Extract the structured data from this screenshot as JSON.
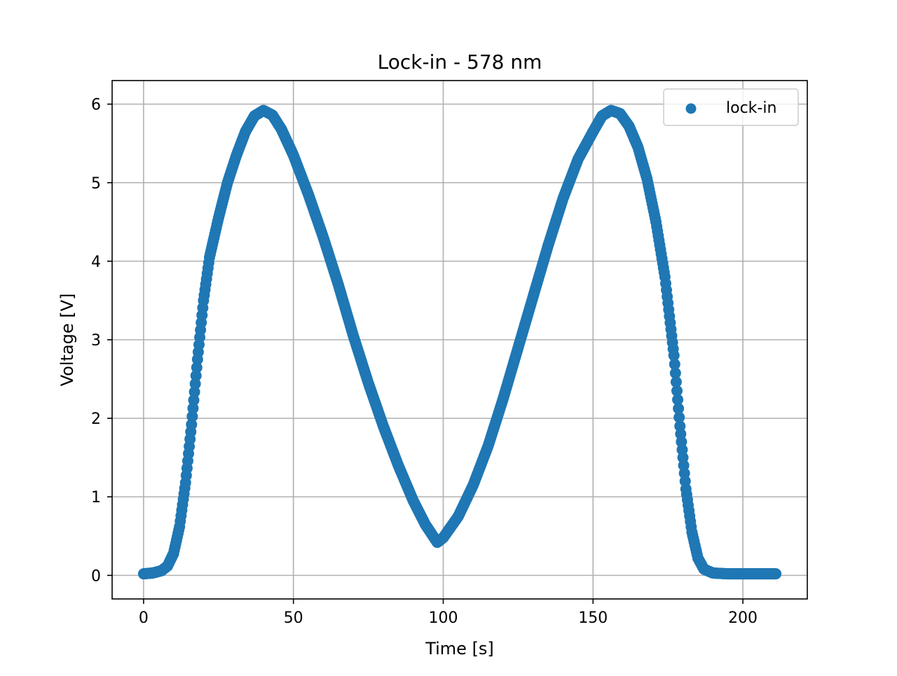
{
  "chart_data": {
    "type": "scatter",
    "title": "Lock-in - 578 nm",
    "xlabel": "Time [s]",
    "ylabel": "Voltage [V]",
    "xlim": [
      -10.5,
      221.5
    ],
    "ylim": [
      -0.3,
      6.3
    ],
    "xticks": [
      0,
      50,
      100,
      150,
      200
    ],
    "yticks": [
      0,
      1,
      2,
      3,
      4,
      5,
      6
    ],
    "grid": true,
    "legend_placement": "upper right",
    "series": [
      {
        "name": "lock-in",
        "color": "#1f77b4",
        "marker": "circle",
        "points": [
          [
            0,
            0.02
          ],
          [
            3,
            0.03
          ],
          [
            6,
            0.06
          ],
          [
            8,
            0.12
          ],
          [
            10,
            0.28
          ],
          [
            12,
            0.62
          ],
          [
            14,
            1.18
          ],
          [
            16,
            1.92
          ],
          [
            18,
            2.75
          ],
          [
            20,
            3.5
          ],
          [
            22,
            4.05
          ],
          [
            25,
            4.55
          ],
          [
            28,
            5.0
          ],
          [
            31,
            5.35
          ],
          [
            34,
            5.65
          ],
          [
            37,
            5.85
          ],
          [
            40,
            5.92
          ],
          [
            43,
            5.86
          ],
          [
            46,
            5.68
          ],
          [
            50,
            5.35
          ],
          [
            55,
            4.85
          ],
          [
            60,
            4.3
          ],
          [
            65,
            3.7
          ],
          [
            70,
            3.05
          ],
          [
            75,
            2.45
          ],
          [
            80,
            1.9
          ],
          [
            85,
            1.4
          ],
          [
            90,
            0.95
          ],
          [
            94,
            0.65
          ],
          [
            98,
            0.42
          ],
          [
            100,
            0.48
          ],
          [
            105,
            0.75
          ],
          [
            110,
            1.15
          ],
          [
            115,
            1.65
          ],
          [
            120,
            2.25
          ],
          [
            125,
            2.9
          ],
          [
            130,
            3.55
          ],
          [
            135,
            4.2
          ],
          [
            140,
            4.8
          ],
          [
            145,
            5.3
          ],
          [
            150,
            5.65
          ],
          [
            153,
            5.85
          ],
          [
            156,
            5.92
          ],
          [
            159,
            5.88
          ],
          [
            162,
            5.72
          ],
          [
            165,
            5.45
          ],
          [
            168,
            5.05
          ],
          [
            171,
            4.5
          ],
          [
            174,
            3.8
          ],
          [
            177,
            2.8
          ],
          [
            179,
            1.9
          ],
          [
            181,
            1.1
          ],
          [
            183,
            0.55
          ],
          [
            185,
            0.22
          ],
          [
            187,
            0.08
          ],
          [
            190,
            0.03
          ],
          [
            195,
            0.02
          ],
          [
            200,
            0.02
          ],
          [
            205,
            0.02
          ],
          [
            211,
            0.02
          ]
        ]
      }
    ]
  }
}
